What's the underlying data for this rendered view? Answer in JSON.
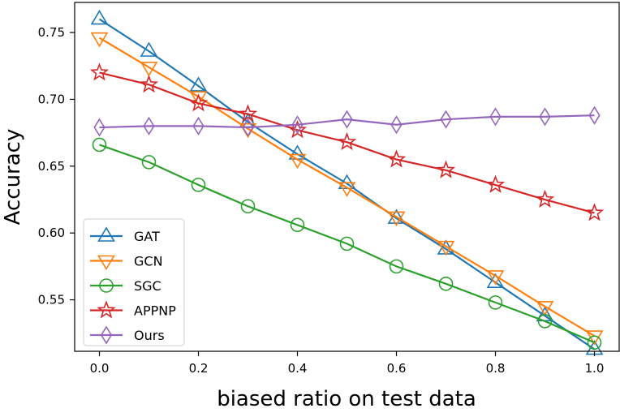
{
  "chart_data": {
    "type": "line",
    "title": "",
    "xlabel": "biased ratio on test data",
    "ylabel": "Accuracy",
    "x": [
      0.0,
      0.1,
      0.2,
      0.3,
      0.4,
      0.5,
      0.6,
      0.7,
      0.8,
      0.9,
      1.0
    ],
    "xlim": [
      -0.05,
      1.05
    ],
    "ylim": [
      0.5115,
      0.7725
    ],
    "xticks": [
      0.0,
      0.2,
      0.4,
      0.6,
      0.8,
      1.0
    ],
    "xtick_labels": [
      "0.0",
      "0.2",
      "0.4",
      "0.6",
      "0.8",
      "1.0"
    ],
    "yticks": [
      0.55,
      0.6,
      0.65,
      0.7,
      0.75
    ],
    "ytick_labels": [
      "0.55",
      "0.60",
      "0.65",
      "0.70",
      "0.75"
    ],
    "grid": false,
    "legend_position": "lower-left",
    "series": [
      {
        "name": "GAT",
        "color": "#1f77b4",
        "marker": "triangle-up",
        "values": [
          0.76,
          0.736,
          0.71,
          0.683,
          0.659,
          0.637,
          0.611,
          0.588,
          0.563,
          0.538,
          0.513
        ]
      },
      {
        "name": "GCN",
        "color": "#ff7f0e",
        "marker": "triangle-down",
        "values": [
          0.746,
          0.724,
          0.702,
          0.678,
          0.655,
          0.634,
          0.612,
          0.59,
          0.568,
          0.545,
          0.523
        ]
      },
      {
        "name": "SGC",
        "color": "#2ca02c",
        "marker": "circle",
        "values": [
          0.666,
          0.653,
          0.636,
          0.62,
          0.606,
          0.592,
          0.575,
          0.562,
          0.548,
          0.534,
          0.518
        ]
      },
      {
        "name": "APPNP",
        "color": "#d62728",
        "marker": "star",
        "values": [
          0.72,
          0.711,
          0.697,
          0.689,
          0.677,
          0.668,
          0.655,
          0.647,
          0.636,
          0.625,
          0.615
        ]
      },
      {
        "name": "Ours",
        "color": "#9467bd",
        "marker": "diamond",
        "values": [
          0.679,
          0.68,
          0.68,
          0.679,
          0.681,
          0.685,
          0.681,
          0.685,
          0.687,
          0.687,
          0.688
        ]
      }
    ]
  }
}
